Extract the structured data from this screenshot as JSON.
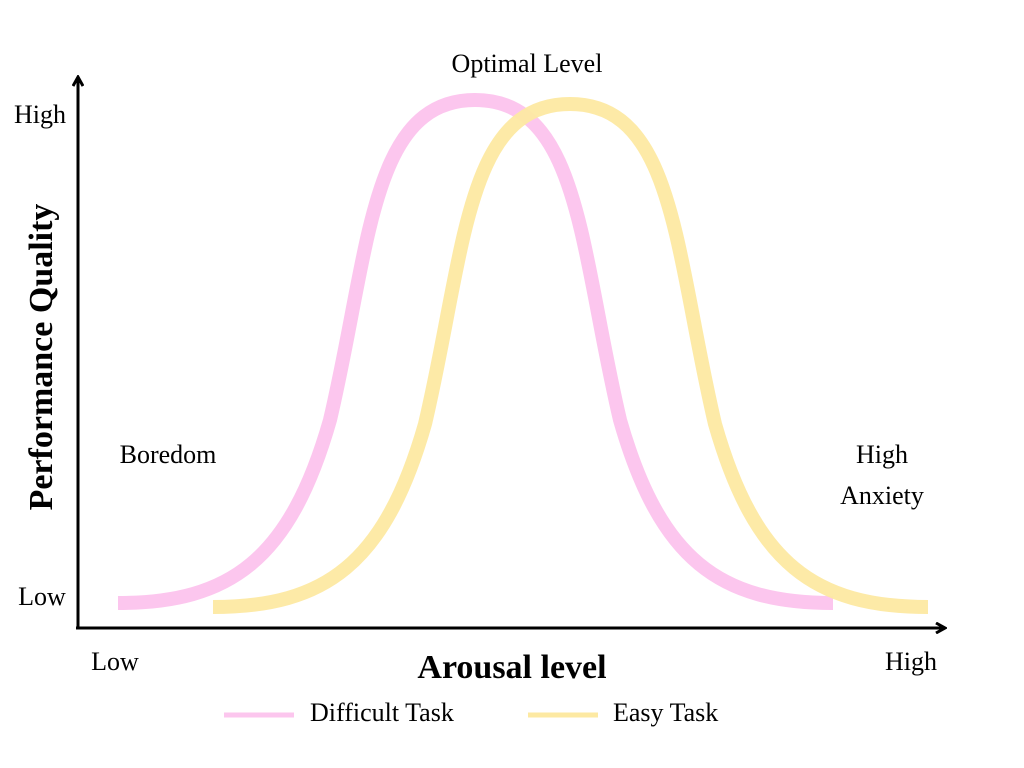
{
  "title": "Optimal Level",
  "y_axis": {
    "label": "Performance Quality",
    "high": "High",
    "low": "Low"
  },
  "x_axis": {
    "label": "Arousal level",
    "low": "Low",
    "high": "High"
  },
  "annotations": {
    "left": "Boredom",
    "right": [
      "High",
      "Anxiety"
    ]
  },
  "legend": [
    {
      "label": "Difficult Task"
    },
    {
      "label": "Easy Task"
    }
  ]
}
